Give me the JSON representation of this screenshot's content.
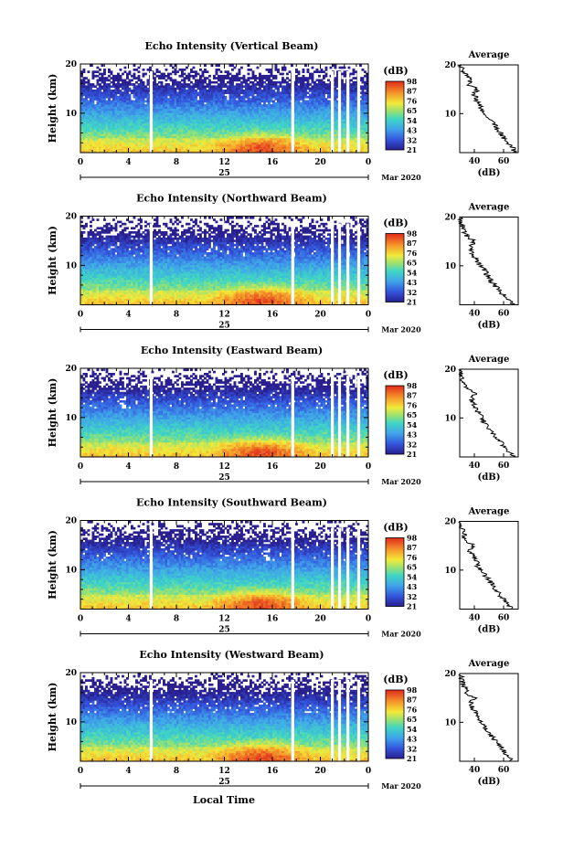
{
  "figure": {
    "xlabel": "Local Time",
    "date_unit": "Mar 2020"
  },
  "chart_data": [
    {
      "type": "heatmap",
      "title": "Echo Intensity (Vertical Beam)",
      "ylabel": "Height (km)",
      "x": [
        0,
        4,
        8,
        12,
        16,
        20,
        0
      ],
      "date_label": "25",
      "y_ticks": [
        10,
        20
      ],
      "ylim": [
        2,
        20
      ],
      "xlim": [
        0,
        24
      ],
      "colorbar": {
        "unit": "(dB)",
        "ticks": [
          21,
          32,
          43,
          54,
          65,
          76,
          87,
          98
        ]
      },
      "gaps_hours": [
        5.9,
        17.7,
        21.0,
        21.6,
        22.3,
        23.2
      ],
      "profile": {
        "title": "Average",
        "xlabel": "(dB)",
        "x_ticks": [
          40,
          60
        ],
        "y_ticks": [
          10,
          20
        ],
        "heights": [
          2,
          3,
          4,
          5,
          6,
          7,
          8,
          9,
          10,
          11,
          12,
          13,
          14,
          15,
          16,
          17,
          18,
          19,
          20
        ],
        "values": [
          68,
          66,
          63,
          60,
          58,
          55,
          53,
          50,
          47,
          45,
          44,
          41,
          40,
          42,
          36,
          38,
          34,
          32,
          30
        ]
      }
    },
    {
      "type": "heatmap",
      "title": "Echo Intensity (Northward Beam)",
      "ylabel": "Height (km)",
      "x": [
        0,
        4,
        8,
        12,
        16,
        20,
        0
      ],
      "date_label": "25",
      "y_ticks": [
        10,
        20
      ],
      "ylim": [
        2,
        20
      ],
      "xlim": [
        0,
        24
      ],
      "colorbar": {
        "unit": "(dB)",
        "ticks": [
          21,
          32,
          43,
          54,
          65,
          76,
          87,
          98
        ]
      },
      "gaps_hours": [
        5.9,
        17.7,
        21.0,
        21.6,
        22.3,
        23.2
      ],
      "profile": {
        "title": "Average",
        "xlabel": "(dB)",
        "x_ticks": [
          40,
          60
        ],
        "y_ticks": [
          10,
          20
        ],
        "heights": [
          2,
          3,
          4,
          5,
          6,
          7,
          8,
          9,
          10,
          11,
          12,
          13,
          14,
          15,
          16,
          17,
          18,
          19,
          20
        ],
        "values": [
          66,
          63,
          60,
          57,
          54,
          51,
          49,
          47,
          44,
          42,
          40,
          38,
          37,
          40,
          35,
          33,
          32,
          31,
          30
        ]
      }
    },
    {
      "type": "heatmap",
      "title": "Echo Intensity (Eastward Beam)",
      "ylabel": "Height (km)",
      "x": [
        0,
        4,
        8,
        12,
        16,
        20,
        0
      ],
      "date_label": "25",
      "y_ticks": [
        10,
        20
      ],
      "ylim": [
        2,
        20
      ],
      "xlim": [
        0,
        24
      ],
      "colorbar": {
        "unit": "(dB)",
        "ticks": [
          21,
          32,
          43,
          54,
          65,
          76,
          87,
          98
        ]
      },
      "gaps_hours": [
        5.9,
        17.7,
        21.0,
        21.6,
        22.3,
        23.2
      ],
      "profile": {
        "title": "Average",
        "xlabel": "(dB)",
        "x_ticks": [
          40,
          60
        ],
        "y_ticks": [
          10,
          20
        ],
        "heights": [
          2,
          3,
          4,
          5,
          6,
          7,
          8,
          9,
          10,
          11,
          12,
          13,
          14,
          15,
          16,
          17,
          18,
          19,
          20
        ],
        "values": [
          67,
          64,
          61,
          58,
          55,
          52,
          50,
          47,
          45,
          43,
          41,
          39,
          38,
          40,
          35,
          34,
          32,
          31,
          30
        ]
      }
    },
    {
      "type": "heatmap",
      "title": "Echo Intensity (Southward Beam)",
      "ylabel": "Height (km)",
      "x": [
        0,
        4,
        8,
        12,
        16,
        20,
        0
      ],
      "date_label": "25",
      "y_ticks": [
        10,
        20
      ],
      "ylim": [
        2,
        20
      ],
      "xlim": [
        0,
        24
      ],
      "colorbar": {
        "unit": "(dB)",
        "ticks": [
          21,
          32,
          43,
          54,
          65,
          76,
          87,
          98
        ]
      },
      "gaps_hours": [
        5.9,
        17.7,
        21.0,
        21.6,
        22.3,
        23.2
      ],
      "profile": {
        "title": "Average",
        "xlabel": "(dB)",
        "x_ticks": [
          40,
          60
        ],
        "y_ticks": [
          10,
          20
        ],
        "heights": [
          2,
          3,
          4,
          5,
          6,
          7,
          8,
          9,
          10,
          11,
          12,
          13,
          14,
          15,
          16,
          17,
          18,
          19,
          20
        ],
        "values": [
          66,
          63,
          60,
          57,
          55,
          52,
          50,
          47,
          44,
          42,
          41,
          39,
          37,
          39,
          35,
          33,
          32,
          31,
          30
        ]
      }
    },
    {
      "type": "heatmap",
      "title": "Echo Intensity (Westward Beam)",
      "ylabel": "Height (km)",
      "x": [
        0,
        4,
        8,
        12,
        16,
        20,
        0
      ],
      "date_label": "25",
      "y_ticks": [
        10,
        20
      ],
      "ylim": [
        2,
        20
      ],
      "xlim": [
        0,
        24
      ],
      "colorbar": {
        "unit": "(dB)",
        "ticks": [
          21,
          32,
          43,
          54,
          65,
          76,
          87,
          98
        ]
      },
      "gaps_hours": [
        5.9,
        17.7,
        21.0,
        21.6,
        22.3,
        23.2
      ],
      "profile": {
        "title": "Average",
        "xlabel": "(dB)",
        "x_ticks": [
          40,
          60
        ],
        "y_ticks": [
          10,
          20
        ],
        "heights": [
          2,
          3,
          4,
          5,
          6,
          7,
          8,
          9,
          10,
          11,
          12,
          13,
          14,
          15,
          16,
          17,
          18,
          19,
          20
        ],
        "values": [
          66,
          63,
          60,
          58,
          55,
          52,
          50,
          47,
          45,
          43,
          41,
          39,
          38,
          40,
          35,
          34,
          32,
          31,
          30
        ]
      }
    }
  ]
}
